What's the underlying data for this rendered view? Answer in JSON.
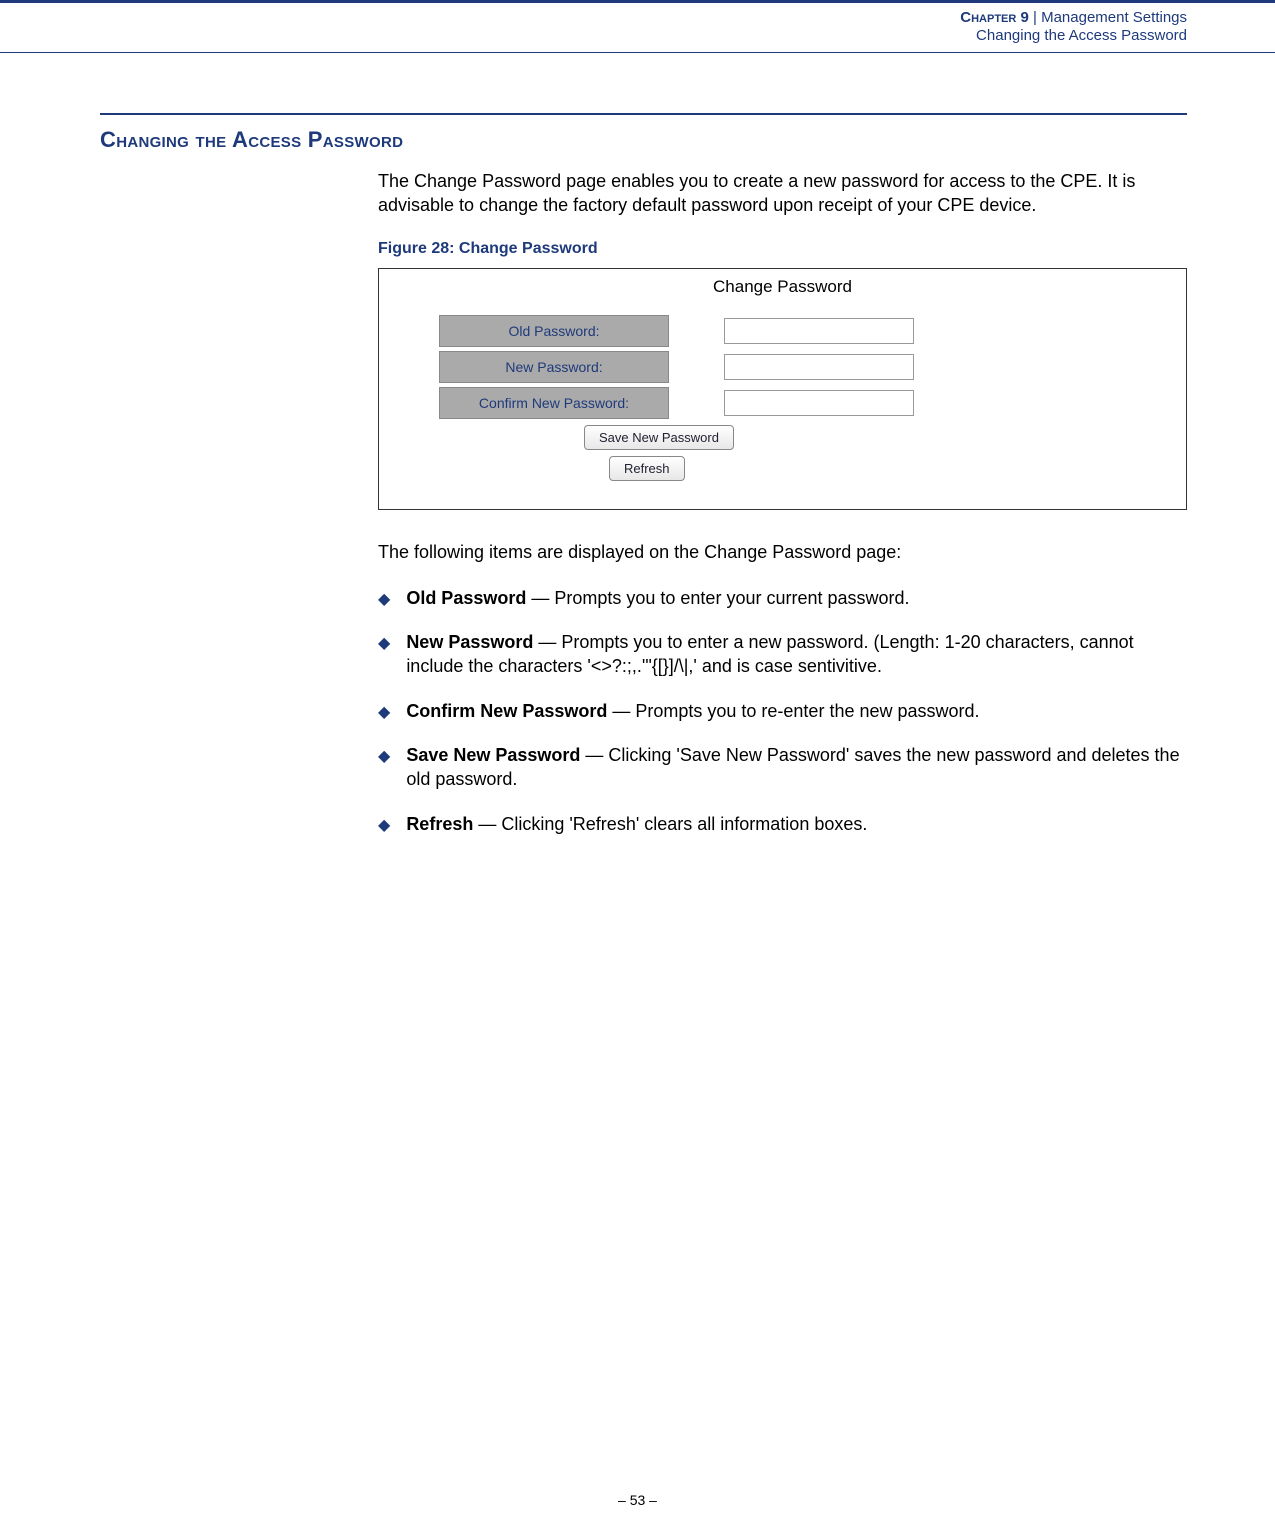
{
  "header": {
    "chapter_label": "Chapter 9",
    "separator": "  |  ",
    "chapter_title": "Management Settings",
    "breadcrumb": "Changing the Access Password"
  },
  "section": {
    "heading": "Changing the Access Password"
  },
  "intro_para": "The Change Password page enables you to create a new password for access to the CPE. It is advisable to change the factory default password upon receipt of your CPE device.",
  "figure": {
    "caption": "Figure 28:  Change Password",
    "title": "Change Password",
    "fields": [
      {
        "label": "Old Password:",
        "value": ""
      },
      {
        "label": "New Password:",
        "value": ""
      },
      {
        "label": "Confirm New Password:",
        "value": ""
      }
    ],
    "save_button": "Save New Password",
    "refresh_button": "Refresh"
  },
  "items_intro": "The following items are displayed on the Change Password page:",
  "items": [
    {
      "term": "Old Password",
      "desc": " — Prompts you to enter your current password."
    },
    {
      "term": "New Password",
      "desc": " — Prompts you to enter a new password. (Length: 1-20 characters, cannot include the characters '<>?:;,.'\"{[}]/\\|,' and is case sentivitive."
    },
    {
      "term": "Confirm New Password",
      "desc": " — Prompts you to re-enter the new password."
    },
    {
      "term": "Save New Password",
      "desc": " — Clicking 'Save New Password' saves the new password and deletes the old password."
    },
    {
      "term": "Refresh",
      "desc": " — Clicking 'Refresh' clears all information boxes."
    }
  ],
  "footer": "–  53  –"
}
